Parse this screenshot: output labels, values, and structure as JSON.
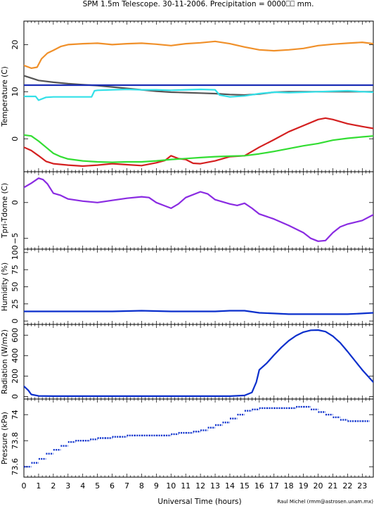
{
  "title": "SPM 1.5m Telescope. 30-11-2006. Precipitation = 0000⎕⎕ mm.",
  "xlabel": "Universal Time (hours)",
  "credit": "Raul Michel (rmm@astrosen.unam.mx)",
  "x_ticks": [
    "0",
    "1",
    "2",
    "3",
    "4",
    "5",
    "6",
    "7",
    "8",
    "9",
    "10",
    "11",
    "12",
    "13",
    "14",
    "15",
    "16",
    "17",
    "18",
    "19",
    "20",
    "21",
    "22",
    "23"
  ],
  "chart_data": [
    {
      "type": "line",
      "ylabel": "Temperature (C)",
      "xlim": [
        0,
        23.75
      ],
      "ylim": [
        -7,
        25
      ],
      "y_ticks": [
        0,
        10,
        20
      ],
      "series": [
        {
          "color": "#f0902a",
          "x": [
            0,
            0.5,
            0.9,
            1.2,
            1.6,
            2,
            2.5,
            3,
            4,
            5,
            6,
            7,
            8,
            9,
            10,
            11,
            12,
            13,
            14,
            15,
            16,
            17,
            18,
            19,
            20,
            21,
            22,
            23,
            23.75
          ],
          "values": [
            15.6,
            15,
            15.2,
            17,
            18.2,
            18.8,
            19.6,
            20,
            20.2,
            20.3,
            20,
            20.2,
            20.3,
            20.1,
            19.8,
            20.2,
            20.4,
            20.7,
            20.2,
            19.5,
            18.9,
            18.7,
            18.9,
            19.2,
            19.8,
            20.1,
            20.3,
            20.5,
            20.2
          ]
        },
        {
          "color": "#555555",
          "x": [
            0,
            0.5,
            1,
            2,
            3,
            4,
            5,
            6,
            7,
            8,
            9,
            10,
            11,
            12,
            13,
            14,
            15,
            16,
            17,
            18,
            19,
            20,
            21,
            22,
            23,
            23.75
          ],
          "values": [
            13.4,
            12.9,
            12.4,
            12,
            11.7,
            11.5,
            11.3,
            11,
            10.7,
            10.4,
            10.1,
            9.9,
            9.8,
            9.7,
            9.6,
            9.4,
            9.3,
            9.5,
            9.9,
            10,
            10,
            10,
            10,
            10,
            10,
            10
          ]
        },
        {
          "color": "#1a2db5",
          "x": [
            0,
            23.75
          ],
          "values": [
            11.4,
            11.4
          ]
        },
        {
          "color": "#33e0e8",
          "x": [
            0,
            0.8,
            1,
            1.5,
            2,
            3,
            4,
            4.6,
            4.8,
            5,
            6,
            7,
            8,
            9,
            10,
            11,
            12,
            13,
            13.3,
            14,
            15,
            16,
            17,
            18,
            19,
            20,
            21,
            22,
            23,
            23.75
          ],
          "values": [
            9,
            9,
            8.2,
            8.8,
            8.9,
            8.9,
            8.9,
            8.9,
            10.2,
            10.3,
            10.4,
            10.5,
            10.4,
            10.4,
            10.3,
            10.4,
            10.5,
            10.4,
            9.3,
            8.9,
            9.1,
            9.6,
            9.9,
            9.8,
            9.9,
            10,
            10.1,
            10.2,
            10,
            9.9
          ]
        },
        {
          "color": "#d42020",
          "x": [
            0,
            0.5,
            1,
            1.5,
            2,
            3,
            4,
            5,
            6,
            7,
            8,
            9,
            9.6,
            10,
            10.5,
            11,
            11.5,
            12,
            13,
            14,
            15,
            16,
            17,
            18,
            19,
            20,
            20.5,
            21,
            22,
            23,
            23.75
          ],
          "values": [
            -1.8,
            -2.5,
            -3.6,
            -4.8,
            -5.3,
            -5.6,
            -5.8,
            -5.6,
            -5.3,
            -5.5,
            -5.7,
            -5.1,
            -4.6,
            -3.6,
            -4.2,
            -4.4,
            -5.2,
            -5.3,
            -4.7,
            -3.8,
            -3.6,
            -1.8,
            -0.2,
            1.5,
            2.8,
            4.1,
            4.4,
            4.1,
            3.2,
            2.6,
            2.2
          ]
        },
        {
          "color": "#33dd33",
          "x": [
            0,
            0.5,
            1,
            1.5,
            2,
            2.5,
            3,
            4,
            5,
            6,
            7,
            8,
            9,
            10,
            11,
            12,
            13,
            14,
            15,
            16,
            17,
            18,
            19,
            20,
            21,
            22,
            23,
            23.75
          ],
          "values": [
            0.8,
            0.6,
            -0.5,
            -1.8,
            -3.1,
            -3.8,
            -4.3,
            -4.7,
            -4.9,
            -5,
            -4.9,
            -4.9,
            -4.7,
            -4.4,
            -4.2,
            -4,
            -3.8,
            -3.7,
            -3.6,
            -3.2,
            -2.7,
            -2.1,
            -1.5,
            -1,
            -0.3,
            0.1,
            0.4,
            0.6
          ]
        }
      ]
    },
    {
      "type": "line",
      "ylabel": "Tpri-Tdome (C)",
      "xlim": [
        0,
        23.75
      ],
      "ylim": [
        -6.5,
        4.3
      ],
      "y_ticks": [
        -5,
        0
      ],
      "series": [
        {
          "color": "#8a2be2",
          "x": [
            0,
            0.5,
            1,
            1.3,
            1.6,
            2,
            2.5,
            3,
            4,
            5,
            6,
            7,
            8,
            8.5,
            9,
            9.5,
            10,
            10.5,
            11,
            12,
            12.5,
            13,
            14,
            14.5,
            15,
            15.5,
            16,
            17,
            18,
            19,
            19.5,
            20,
            20.5,
            21,
            21.5,
            22,
            23,
            23.75
          ],
          "values": [
            2.1,
            2.7,
            3.4,
            3.2,
            2.6,
            1.3,
            1.0,
            0.5,
            0.2,
            0,
            0.3,
            0.6,
            0.8,
            0.7,
            0,
            -0.4,
            -0.8,
            -0.2,
            0.7,
            1.5,
            1.2,
            0.4,
            -0.2,
            -0.4,
            -0.1,
            -0.8,
            -1.6,
            -2.3,
            -3.2,
            -4.2,
            -5,
            -5.4,
            -5.3,
            -4.2,
            -3.4,
            -3,
            -2.5,
            -1.7
          ]
        }
      ]
    },
    {
      "type": "line",
      "ylabel": "Humidity (%)",
      "xlim": [
        0,
        23.75
      ],
      "ylim": [
        -5,
        105
      ],
      "y_ticks": [
        0,
        25,
        50,
        75,
        100
      ],
      "series": [
        {
          "color": "#0a2fcc",
          "x": [
            0,
            2,
            4,
            6,
            8,
            10,
            12,
            13,
            14,
            15,
            16,
            17,
            18,
            19,
            20,
            21,
            22,
            23,
            23.75
          ],
          "values": [
            14,
            14,
            14,
            14,
            15,
            14,
            14,
            14,
            15,
            15,
            12,
            11,
            10,
            10,
            10,
            10,
            10,
            11,
            12
          ]
        }
      ]
    },
    {
      "type": "line",
      "ylabel": "Radiation (W/m2)",
      "xlim": [
        0,
        23.75
      ],
      "ylim": [
        -25,
        705
      ],
      "y_ticks": [
        0,
        200,
        400,
        600
      ],
      "series": [
        {
          "color": "#0a2fcc",
          "x": [
            0,
            0.3,
            0.5,
            1,
            2,
            5,
            8,
            12,
            14,
            15,
            15.5,
            15.8,
            16,
            16.5,
            17,
            17.5,
            18,
            18.5,
            19,
            19.5,
            20,
            20.5,
            21,
            21.5,
            22,
            22.5,
            23,
            23.75
          ],
          "values": [
            100,
            60,
            20,
            5,
            3,
            3,
            3,
            3,
            3,
            10,
            40,
            140,
            260,
            325,
            405,
            480,
            545,
            595,
            630,
            648,
            650,
            635,
            590,
            525,
            440,
            350,
            260,
            140
          ]
        }
      ]
    },
    {
      "type": "scatter",
      "ylabel": "Pressure (kPa)",
      "xlim": [
        0,
        23.75
      ],
      "ylim": [
        73.52,
        74.12
      ],
      "y_ticks": [
        73.6,
        73.8,
        74
      ],
      "y_tick_labels": [
        "73.6",
        "73.8",
        "74"
      ],
      "series": [
        {
          "color": "#0a2fcc",
          "x": [
            0,
            0.5,
            1,
            1.5,
            2,
            2.5,
            3,
            3.5,
            4,
            4.5,
            5,
            5.5,
            6,
            6.5,
            7,
            7.5,
            8,
            8.5,
            9,
            9.5,
            10,
            10.5,
            11,
            11.5,
            12,
            12.5,
            13,
            13.5,
            14,
            14.5,
            15,
            15.5,
            16,
            16.5,
            17,
            17.5,
            18,
            18.5,
            19,
            19.5,
            20,
            20.5,
            21,
            21.5,
            22,
            22.5,
            23,
            23.75
          ],
          "values": [
            73.6,
            73.63,
            73.66,
            73.7,
            73.73,
            73.76,
            73.79,
            73.8,
            73.8,
            73.81,
            73.82,
            73.82,
            73.83,
            73.83,
            73.84,
            73.84,
            73.84,
            73.84,
            73.84,
            73.84,
            73.85,
            73.86,
            73.86,
            73.87,
            73.88,
            73.9,
            73.92,
            73.94,
            73.97,
            74,
            74.03,
            74.04,
            74.05,
            74.05,
            74.05,
            74.05,
            74.05,
            74.06,
            74.06,
            74.04,
            74.02,
            74.0,
            73.98,
            73.96,
            73.95,
            73.95,
            73.95,
            73.95
          ]
        }
      ]
    }
  ]
}
